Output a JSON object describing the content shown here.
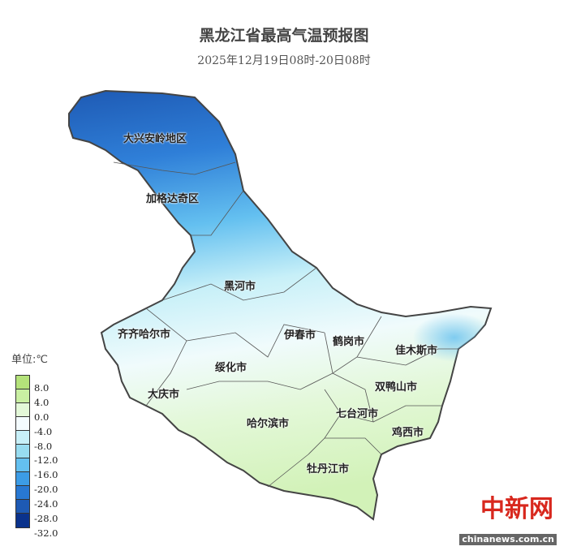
{
  "title": "黑龙江省最高气温预报图",
  "subtitle": "2025年12月19日08时-20日08时",
  "legend": {
    "unit": "单位:℃",
    "ticks": [
      "8.0",
      "4.0",
      "0.0",
      "-4.0",
      "-8.0",
      "-12.0",
      "-16.0",
      "-20.0",
      "-24.0",
      "-28.0",
      "-32.0"
    ],
    "colors": [
      "#b4e27a",
      "#c9efa2",
      "#e3f8d8",
      "#f4fcff",
      "#c8f0f8",
      "#98dcf0",
      "#64c0f0",
      "#3c9ce6",
      "#2878d2",
      "#1e5ab4",
      "#0a328c"
    ]
  },
  "regions": [
    "大兴安岭地区",
    "加格达奇区",
    "黑河市",
    "齐齐哈尔市",
    "伊春市",
    "鹤岗市",
    "佳木斯市",
    "绥化市",
    "大庆市",
    "双鸭山市",
    "七台河市",
    "哈尔滨市",
    "鸡西市",
    "牡丹江市"
  ],
  "watermark": {
    "logo": "中新网",
    "site": "chinanews.com.cn"
  }
}
